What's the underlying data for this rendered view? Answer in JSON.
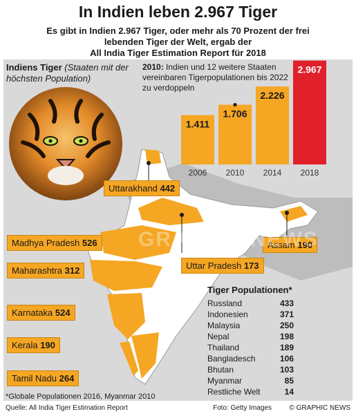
{
  "header": {
    "title": "In Indien leben 2.967 Tiger",
    "subtitle_lines": [
      "Es gibt in Indien 2.967 Tiger, oder mehr als 70 Prozent der frei",
      "lebenden Tiger der Welt, ergab der",
      "All India Tiger Estimation Report für 2018"
    ]
  },
  "map_panel": {
    "title_bold": "Indiens Tiger",
    "title_italic": " (Staaten mit der höchsten Population)"
  },
  "chart_data": {
    "type": "bar",
    "categories": [
      "2006",
      "2010",
      "2014",
      "2018"
    ],
    "values": [
      1411,
      1706,
      2226,
      2967
    ],
    "value_labels": [
      "1.411",
      "1.706",
      "2.226",
      "2.967"
    ],
    "ylim": [
      0,
      3000
    ],
    "colors": [
      "#f5a623",
      "#f5a623",
      "#f5a623",
      "#e0202a"
    ],
    "annotation_bold": "2010:",
    "annotation_text": " Indien und 12 weitere Staaten vereinbaren Tigerpopulationen bis 2022 zu verdoppeln"
  },
  "states": [
    {
      "name": "Uttarakhand",
      "value": "442"
    },
    {
      "name": "Madhya Pradesh",
      "value": "526"
    },
    {
      "name": "Maharashtra",
      "value": "312"
    },
    {
      "name": "Karnataka",
      "value": "524"
    },
    {
      "name": "Kerala",
      "value": "190"
    },
    {
      "name": "Tamil Nadu",
      "value": "264"
    },
    {
      "name": "Uttar Pradesh",
      "value": "173"
    },
    {
      "name": "Assam",
      "value": "190"
    }
  ],
  "world_table": {
    "title": "Tiger Populationen*",
    "rows": [
      {
        "name": "Russland",
        "value": "433"
      },
      {
        "name": "Indonesien",
        "value": "371"
      },
      {
        "name": "Malaysia",
        "value": "250"
      },
      {
        "name": "Nepal",
        "value": "198"
      },
      {
        "name": "Thailand",
        "value": "189"
      },
      {
        "name": "Bangladesch",
        "value": "106"
      },
      {
        "name": "Bhutan",
        "value": "103"
      },
      {
        "name": "Myanmar",
        "value": "85"
      },
      {
        "name": "Restliche Welt",
        "value": "14"
      }
    ]
  },
  "footer": {
    "footnote": "*Globale Populationen 2016, Myanmar 2010",
    "source": "Quelle: All India Tiger Estimation Report",
    "photo": "Foto: Getty Images",
    "brand": "© GRAPHIC NEWS"
  },
  "watermark": "GRAPHIC NEWS",
  "colors": {
    "accent": "#f5a623",
    "highlight": "#e0202a",
    "panel": "#d9d9d9"
  }
}
